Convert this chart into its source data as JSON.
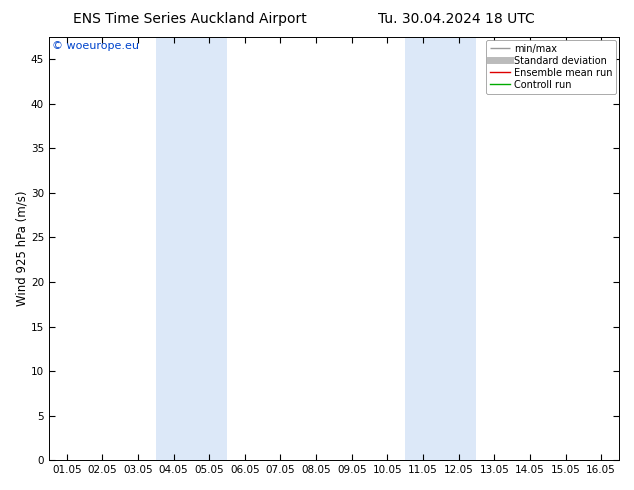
{
  "title_left": "ENS Time Series Auckland Airport",
  "title_right": "Tu. 30.04.2024 18 UTC",
  "ylabel": "Wind 925 hPa (m/s)",
  "ylim": [
    0,
    47.5
  ],
  "yticks": [
    0,
    5,
    10,
    15,
    20,
    25,
    30,
    35,
    40,
    45
  ],
  "xtick_labels": [
    "01.05",
    "02.05",
    "03.05",
    "04.05",
    "05.05",
    "06.05",
    "07.05",
    "08.05",
    "09.05",
    "10.05",
    "11.05",
    "12.05",
    "13.05",
    "14.05",
    "15.05",
    "16.05"
  ],
  "shaded_bands": [
    {
      "xstart": 3,
      "xend": 5
    },
    {
      "xstart": 10,
      "xend": 12
    }
  ],
  "shade_color": "#dce8f8",
  "background_color": "#ffffff",
  "watermark": "© woeurope.eu",
  "watermark_color": "#0044cc",
  "legend_labels": [
    "min/max",
    "Standard deviation",
    "Ensemble mean run",
    "Controll run"
  ],
  "legend_colors": [
    "#aaaaaa",
    "#cccccc",
    "#dd0000",
    "#00aa00"
  ],
  "title_fontsize": 10,
  "tick_fontsize": 7.5,
  "ylabel_fontsize": 8.5,
  "watermark_fontsize": 8
}
